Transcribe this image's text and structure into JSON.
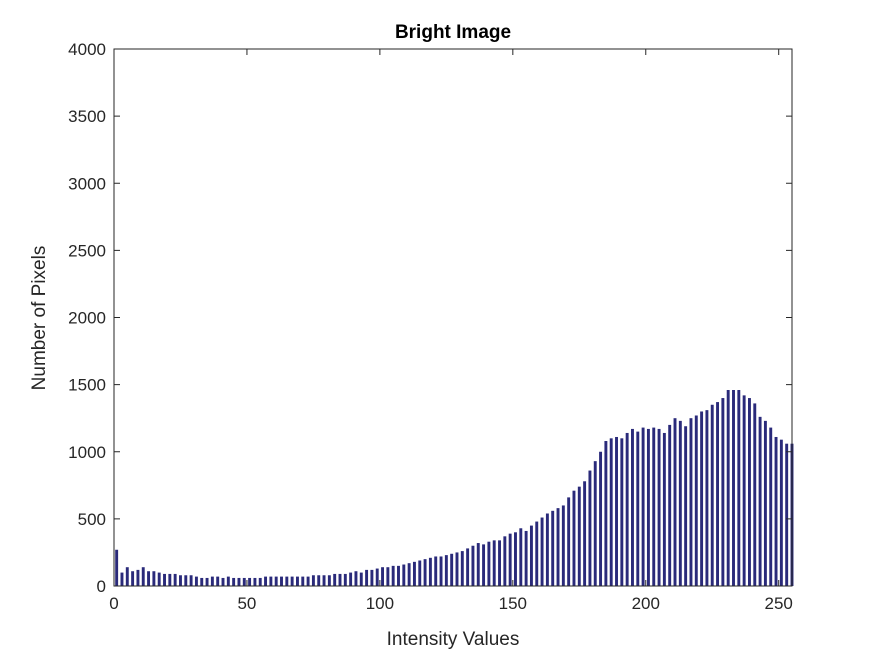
{
  "chart_data": {
    "type": "bar",
    "title": "Bright Image",
    "xlabel": "Intensity Values",
    "ylabel": "Number of Pixels",
    "xlim": [
      0,
      255
    ],
    "ylim": [
      0,
      4000
    ],
    "xticks": [
      0,
      50,
      100,
      150,
      200,
      250
    ],
    "yticks": [
      0,
      500,
      1000,
      1500,
      2000,
      2500,
      3000,
      3500,
      4000
    ],
    "grid": false,
    "bar_color": "#2a2a7a",
    "series": [
      {
        "x": [
          1,
          3,
          5,
          7,
          9,
          11,
          13,
          15,
          17,
          19,
          21,
          23,
          25,
          27,
          29,
          31,
          33,
          35,
          37,
          39,
          41,
          43,
          45,
          47,
          49,
          51,
          53,
          55,
          57,
          59,
          61,
          63,
          65,
          67,
          69,
          71,
          73,
          75,
          77,
          79,
          81,
          83,
          85,
          87,
          89,
          91,
          93,
          95,
          97,
          99,
          101,
          103,
          105,
          107,
          109,
          111,
          113,
          115,
          117,
          119,
          121,
          123,
          125,
          127,
          129,
          131,
          133,
          135,
          137,
          139,
          141,
          143,
          145,
          147,
          149,
          151,
          153,
          155,
          157,
          159,
          161,
          163,
          165,
          167,
          169,
          171,
          173,
          175,
          177,
          179,
          181,
          183,
          185,
          187,
          189,
          191,
          193,
          195,
          197,
          199,
          201,
          203,
          205,
          207,
          209,
          211,
          213,
          215,
          217,
          219,
          221,
          223,
          225,
          227,
          229,
          231,
          233,
          235,
          237,
          239,
          241,
          243,
          245,
          247,
          249,
          251,
          253,
          255
        ],
        "values": [
          270,
          100,
          140,
          110,
          120,
          140,
          110,
          110,
          100,
          90,
          90,
          90,
          80,
          80,
          80,
          70,
          60,
          60,
          70,
          70,
          60,
          70,
          60,
          60,
          60,
          60,
          60,
          60,
          70,
          70,
          70,
          70,
          70,
          70,
          70,
          70,
          70,
          80,
          80,
          80,
          80,
          90,
          90,
          90,
          100,
          110,
          100,
          120,
          120,
          130,
          140,
          140,
          150,
          150,
          160,
          170,
          180,
          190,
          200,
          210,
          220,
          220,
          230,
          240,
          250,
          260,
          280,
          300,
          320,
          310,
          330,
          340,
          340,
          370,
          390,
          400,
          430,
          410,
          450,
          480,
          510,
          540,
          560,
          580,
          600,
          660,
          710,
          740,
          780,
          860,
          930,
          1000,
          1080,
          1100,
          1110,
          1100,
          1140,
          1170,
          1150,
          1180,
          1170,
          1180,
          1170,
          1140,
          1200,
          1250,
          1230,
          1190,
          1250,
          1270,
          1300,
          1310,
          1350,
          1370,
          1400,
          1460,
          1460,
          1460,
          1420,
          1400,
          1360,
          1260,
          1230,
          1180,
          1110,
          1090,
          1060,
          1060
        ]
      }
    ]
  }
}
